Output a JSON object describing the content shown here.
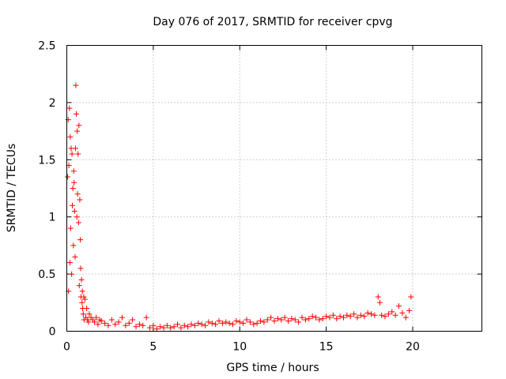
{
  "chart_data": {
    "type": "scatter",
    "title": "Day 076 of 2017, SRMTID for receiver cpvg",
    "xlabel": "GPS time / hours",
    "ylabel": "SRMTID / TECUs",
    "xlim": [
      0,
      24
    ],
    "ylim": [
      0,
      2.5
    ],
    "xticks": [
      0,
      5,
      10,
      15,
      20
    ],
    "xtick_labels": [
      "0",
      "5",
      "10",
      "15",
      "20"
    ],
    "yticks": [
      0,
      0.5,
      1,
      1.5,
      2,
      2.5
    ],
    "ytick_labels": [
      "0",
      "0.5",
      "1",
      "1.5",
      "2",
      "2.5"
    ],
    "grid": true,
    "marker": "+",
    "color": "#ff0000",
    "series": [
      {
        "name": "SRMTID",
        "x": [
          0.05,
          0.08,
          0.1,
          0.12,
          0.15,
          0.18,
          0.2,
          0.22,
          0.25,
          0.28,
          0.3,
          0.32,
          0.35,
          0.38,
          0.4,
          0.42,
          0.45,
          0.48,
          0.5,
          0.52,
          0.55,
          0.58,
          0.6,
          0.62,
          0.65,
          0.68,
          0.7,
          0.72,
          0.75,
          0.78,
          0.8,
          0.82,
          0.85,
          0.88,
          0.9,
          0.92,
          0.95,
          0.98,
          1.0,
          1.05,
          1.1,
          1.15,
          1.2,
          1.25,
          1.3,
          1.4,
          1.5,
          1.6,
          1.7,
          1.8,
          1.9,
          2.0,
          2.2,
          2.4,
          2.6,
          2.8,
          3.0,
          3.2,
          3.4,
          3.6,
          3.8,
          4.0,
          4.2,
          4.4,
          4.6,
          4.8,
          5.0,
          5.2,
          5.4,
          5.6,
          5.8,
          6.0,
          6.2,
          6.4,
          6.6,
          6.8,
          7.0,
          7.2,
          7.4,
          7.6,
          7.8,
          8.0,
          8.2,
          8.4,
          8.6,
          8.8,
          9.0,
          9.2,
          9.4,
          9.6,
          9.8,
          10.0,
          10.2,
          10.4,
          10.6,
          10.8,
          11.0,
          11.2,
          11.4,
          11.6,
          11.8,
          12.0,
          12.2,
          12.4,
          12.6,
          12.8,
          13.0,
          13.2,
          13.4,
          13.6,
          13.8,
          14.0,
          14.2,
          14.4,
          14.6,
          14.8,
          15.0,
          15.2,
          15.4,
          15.6,
          15.8,
          16.0,
          16.2,
          16.4,
          16.6,
          16.8,
          17.0,
          17.2,
          17.4,
          17.6,
          17.8,
          18.0,
          18.1,
          18.2,
          18.4,
          18.6,
          18.8,
          19.0,
          19.2,
          19.4,
          19.6,
          19.8,
          19.9
        ],
        "y": [
          1.35,
          1.85,
          0.35,
          1.45,
          1.95,
          0.6,
          1.7,
          0.9,
          1.6,
          0.5,
          1.55,
          1.1,
          1.25,
          0.75,
          1.4,
          1.3,
          1.05,
          0.65,
          1.6,
          2.15,
          1.9,
          1.0,
          1.75,
          1.2,
          1.55,
          0.95,
          1.8,
          0.4,
          1.15,
          0.8,
          0.55,
          0.3,
          0.45,
          0.25,
          0.35,
          0.2,
          0.15,
          0.3,
          0.1,
          0.28,
          0.12,
          0.2,
          0.1,
          0.08,
          0.15,
          0.12,
          0.1,
          0.08,
          0.12,
          0.06,
          0.1,
          0.09,
          0.07,
          0.05,
          0.1,
          0.06,
          0.08,
          0.12,
          0.05,
          0.07,
          0.1,
          0.04,
          0.06,
          0.05,
          0.12,
          0.03,
          0.05,
          0.02,
          0.04,
          0.03,
          0.05,
          0.03,
          0.04,
          0.06,
          0.03,
          0.05,
          0.04,
          0.06,
          0.05,
          0.07,
          0.06,
          0.05,
          0.08,
          0.07,
          0.06,
          0.09,
          0.07,
          0.08,
          0.07,
          0.06,
          0.09,
          0.08,
          0.07,
          0.1,
          0.08,
          0.06,
          0.07,
          0.09,
          0.08,
          0.1,
          0.12,
          0.09,
          0.11,
          0.1,
          0.12,
          0.09,
          0.11,
          0.1,
          0.08,
          0.12,
          0.1,
          0.11,
          0.13,
          0.12,
          0.1,
          0.11,
          0.13,
          0.12,
          0.14,
          0.11,
          0.13,
          0.12,
          0.14,
          0.13,
          0.15,
          0.12,
          0.14,
          0.13,
          0.16,
          0.15,
          0.14,
          0.3,
          0.25,
          0.14,
          0.13,
          0.15,
          0.17,
          0.14,
          0.22,
          0.16,
          0.12,
          0.18,
          0.3
        ]
      }
    ]
  }
}
